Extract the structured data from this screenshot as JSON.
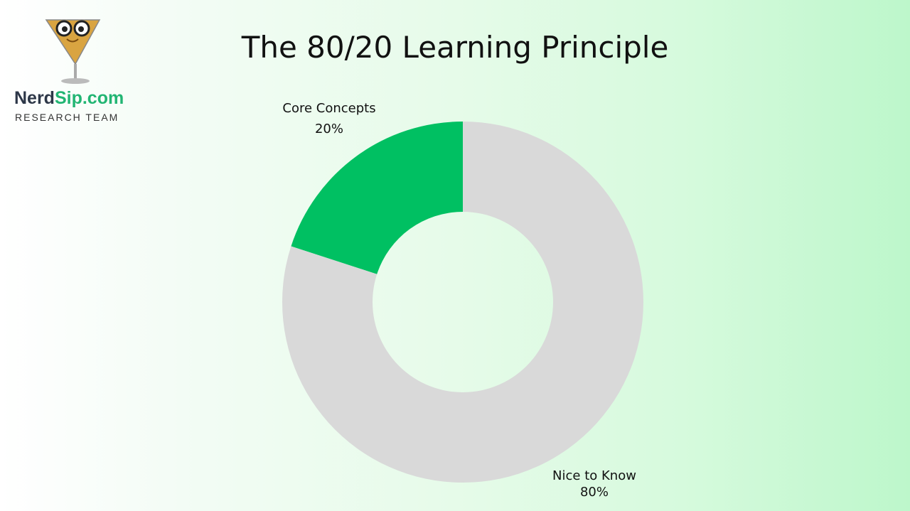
{
  "brand": {
    "name_part1": "Nerd",
    "name_part2": "Sip.com",
    "subtitle": "RESEARCH TEAM"
  },
  "chart_data": {
    "type": "pie",
    "donut": true,
    "title": "The 80/20 Learning Principle",
    "slices": [
      {
        "label": "Core Concepts",
        "value": 20,
        "value_label": "20%",
        "color": "#00c062"
      },
      {
        "label": "Nice to Know",
        "value": 80,
        "value_label": "80%",
        "color": "#d9d9d9"
      }
    ],
    "start_angle": "top",
    "direction": "counterclockwise"
  }
}
